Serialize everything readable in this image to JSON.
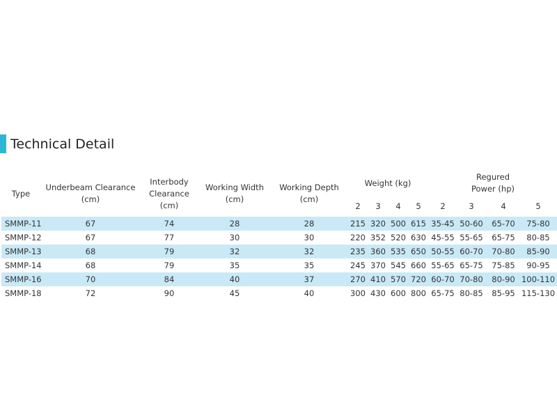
{
  "title": "Technical Detail",
  "table": {
    "headers": [
      {
        "lines": [
          "Type"
        ]
      },
      {
        "lines": [
          "Underbeam Clearance",
          "(cm)"
        ]
      },
      {
        "lines": [
          "Interbody",
          "Clearance",
          "(cm)"
        ]
      },
      {
        "lines": [
          "Working Width",
          "(cm)"
        ]
      },
      {
        "lines": [
          "Working Depth",
          "(cm)"
        ]
      }
    ],
    "groups": [
      {
        "lines": [
          "Weight (kg)"
        ],
        "subheaders": [
          2,
          3,
          4,
          5
        ]
      },
      {
        "lines": [
          "Regured",
          "Power (hp)"
        ],
        "subheaders": [
          2,
          3,
          4,
          5
        ]
      }
    ],
    "rows": [
      [
        "SMMP-11",
        67,
        74,
        28,
        28,
        215,
        320,
        500,
        615,
        "35-45",
        "50-60",
        "65-70",
        "75-80"
      ],
      [
        "SMMP-12",
        67,
        77,
        30,
        30,
        220,
        352,
        520,
        630,
        "45-55",
        "55-65",
        "65-75",
        "80-85"
      ],
      [
        "SMMP-13",
        68,
        79,
        32,
        32,
        235,
        360,
        535,
        650,
        "50-55",
        "60-70",
        "70-80",
        "85-90"
      ],
      [
        "SMMP-14",
        68,
        79,
        35,
        35,
        245,
        370,
        545,
        660,
        "55-65",
        "65-75",
        "75-85",
        "90-95"
      ],
      [
        "SMMP-16",
        70,
        84,
        40,
        37,
        270,
        410,
        570,
        720,
        "60-70",
        "70-80",
        "80-90",
        "100-110"
      ],
      [
        "SMMP-18",
        72,
        90,
        45,
        40,
        300,
        430,
        600,
        800,
        "65-75",
        "80-85",
        "85-95",
        "115-130"
      ]
    ]
  }
}
